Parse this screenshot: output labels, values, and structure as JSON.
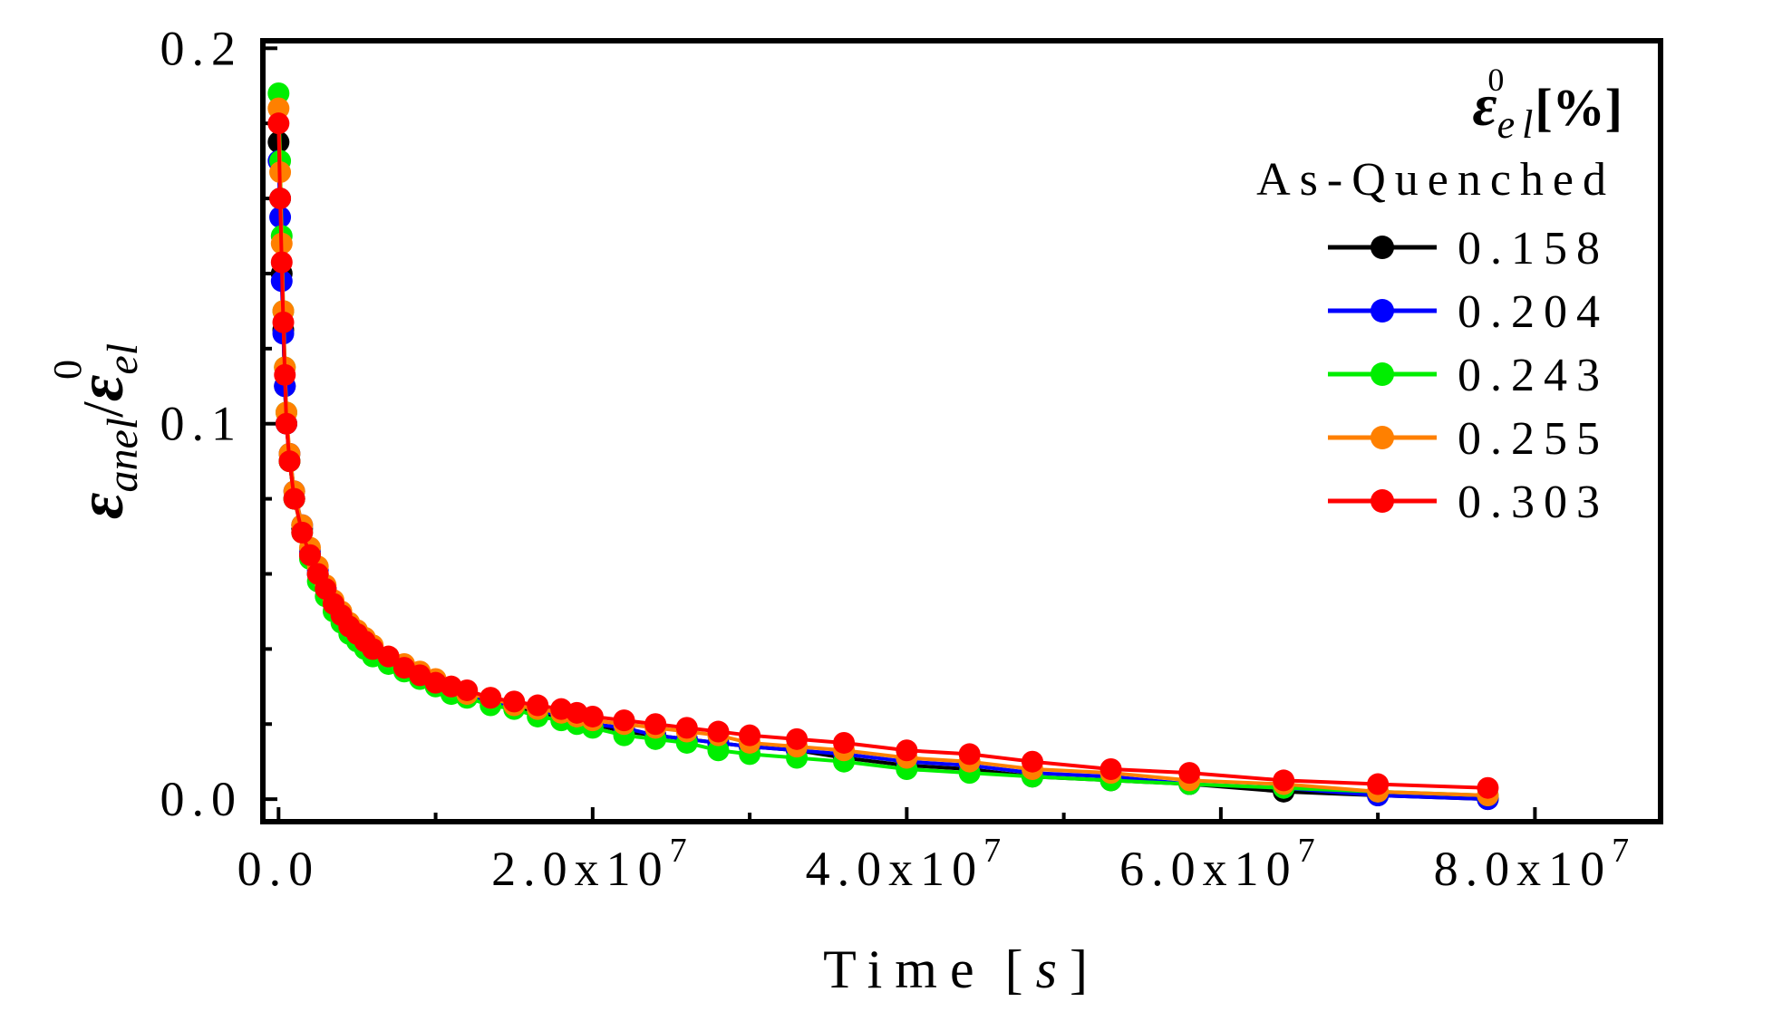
{
  "chart_data": {
    "type": "line",
    "title": "",
    "xlabel": {
      "text": "Time",
      "unit": "s",
      "open": "[",
      "close": "]"
    },
    "ylabel": {
      "numerator_symbol": "ε",
      "numerator_sub": "anel",
      "separator": "/",
      "denominator_symbol": "ε",
      "denominator_sub": "el",
      "denominator_sup": "0"
    },
    "xlim": [
      -1000000,
      88000000
    ],
    "ylim": [
      -0.006,
      0.202
    ],
    "x_ticks": [
      {
        "value": 0,
        "mantissa": "0.0",
        "exponent": ""
      },
      {
        "value": 20000000,
        "mantissa": "2.0x10",
        "exponent": "7"
      },
      {
        "value": 40000000,
        "mantissa": "4.0x10",
        "exponent": "7"
      },
      {
        "value": 60000000,
        "mantissa": "6.0x10",
        "exponent": "7"
      },
      {
        "value": 80000000,
        "mantissa": "8.0x10",
        "exponent": "7"
      }
    ],
    "y_ticks": [
      {
        "value": 0.0,
        "label": "0.0"
      },
      {
        "value": 0.1,
        "label": "0.1"
      },
      {
        "value": 0.2,
        "label": "0.2"
      }
    ],
    "legend": {
      "position": "top-right",
      "title_symbol": "ε",
      "title_sub": "el",
      "title_sup": "0",
      "title_unit": "[%]",
      "subtitle": "As-Quenched"
    },
    "x": [
      0,
      100000,
      200000,
      300000,
      400000,
      500000,
      700000,
      1000000,
      1500000,
      2000000,
      2500000,
      3000000,
      3500000,
      4000000,
      4500000,
      5000000,
      5500000,
      6000000,
      7000000,
      8000000,
      9000000,
      10000000,
      11000000,
      12000000,
      13500000,
      15000000,
      16500000,
      18000000,
      19000000,
      20000000,
      22000000,
      24000000,
      26000000,
      28000000,
      30000000,
      33000000,
      36000000,
      40000000,
      44000000,
      48000000,
      53000000,
      58000000,
      64000000,
      70000000,
      77000000
    ],
    "series": [
      {
        "name": "0.158",
        "color": "#000000",
        "values": [
          0.175,
          0.16,
          0.14,
          0.125,
          0.11,
          0.1,
          0.09,
          0.08,
          0.072,
          0.065,
          0.06,
          0.056,
          0.052,
          0.049,
          0.046,
          0.044,
          0.042,
          0.04,
          0.037,
          0.035,
          0.033,
          0.031,
          0.029,
          0.028,
          0.026,
          0.025,
          0.023,
          0.022,
          0.021,
          0.02,
          0.018,
          0.017,
          0.016,
          0.015,
          0.014,
          0.013,
          0.011,
          0.009,
          0.008,
          0.006,
          0.005,
          0.004,
          0.002,
          0.001,
          0.0
        ]
      },
      {
        "name": "0.204",
        "color": "#0000ff",
        "values": [
          0.17,
          0.155,
          0.138,
          0.124,
          0.11,
          0.1,
          0.092,
          0.082,
          0.073,
          0.066,
          0.061,
          0.056,
          0.052,
          0.049,
          0.046,
          0.044,
          0.042,
          0.04,
          0.037,
          0.035,
          0.033,
          0.031,
          0.029,
          0.028,
          0.026,
          0.025,
          0.024,
          0.022,
          0.021,
          0.02,
          0.019,
          0.017,
          0.016,
          0.015,
          0.014,
          0.013,
          0.012,
          0.01,
          0.009,
          0.007,
          0.006,
          0.004,
          0.003,
          0.001,
          0.0
        ]
      },
      {
        "name": "0.243",
        "color": "#00ee00",
        "values": [
          0.188,
          0.17,
          0.15,
          0.13,
          0.115,
          0.103,
          0.09,
          0.08,
          0.071,
          0.064,
          0.058,
          0.054,
          0.05,
          0.047,
          0.044,
          0.042,
          0.04,
          0.038,
          0.036,
          0.034,
          0.032,
          0.03,
          0.028,
          0.027,
          0.025,
          0.024,
          0.022,
          0.021,
          0.02,
          0.019,
          0.017,
          0.016,
          0.015,
          0.013,
          0.012,
          0.011,
          0.01,
          0.008,
          0.007,
          0.006,
          0.005,
          0.004,
          0.003,
          0.002,
          0.001
        ]
      },
      {
        "name": "0.255",
        "color": "#ff8000",
        "values": [
          0.184,
          0.167,
          0.148,
          0.13,
          0.115,
          0.103,
          0.092,
          0.082,
          0.073,
          0.067,
          0.062,
          0.057,
          0.053,
          0.05,
          0.047,
          0.045,
          0.043,
          0.041,
          0.038,
          0.036,
          0.034,
          0.032,
          0.03,
          0.028,
          0.027,
          0.025,
          0.024,
          0.023,
          0.022,
          0.021,
          0.02,
          0.019,
          0.018,
          0.017,
          0.015,
          0.014,
          0.013,
          0.011,
          0.01,
          0.008,
          0.007,
          0.005,
          0.004,
          0.002,
          0.001
        ]
      },
      {
        "name": "0.303",
        "color": "#ff0000",
        "values": [
          0.18,
          0.16,
          0.143,
          0.127,
          0.113,
          0.1,
          0.09,
          0.08,
          0.071,
          0.065,
          0.06,
          0.056,
          0.052,
          0.049,
          0.046,
          0.044,
          0.042,
          0.04,
          0.038,
          0.035,
          0.033,
          0.031,
          0.03,
          0.029,
          0.027,
          0.026,
          0.025,
          0.024,
          0.023,
          0.022,
          0.021,
          0.02,
          0.019,
          0.018,
          0.017,
          0.016,
          0.015,
          0.013,
          0.012,
          0.01,
          0.008,
          0.007,
          0.005,
          0.004,
          0.003
        ]
      }
    ]
  }
}
